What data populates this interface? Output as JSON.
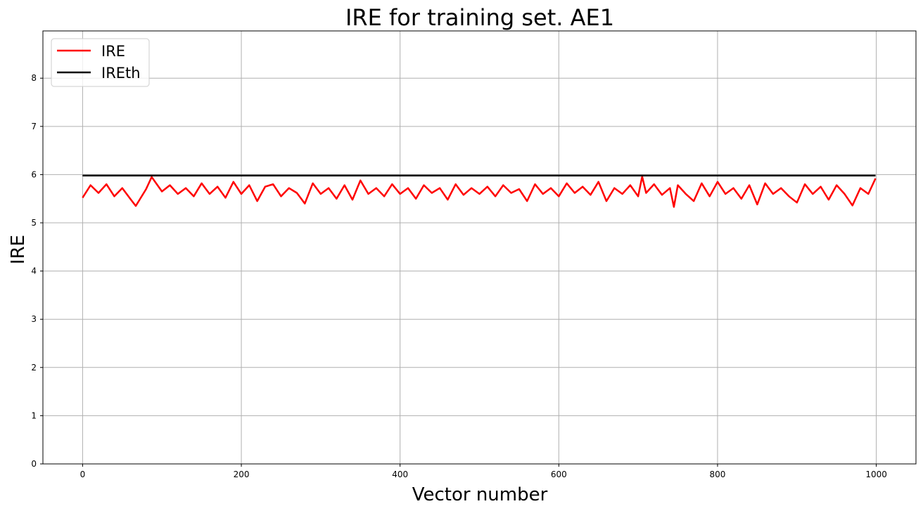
{
  "chart_data": {
    "type": "line",
    "title": "IRE for training set. AE1",
    "xlabel": "Vector number",
    "ylabel": "IRE",
    "xlim": [
      -50,
      1050
    ],
    "ylim": [
      0,
      8.98
    ],
    "xticks": [
      0,
      200,
      400,
      600,
      800,
      1000
    ],
    "yticks": [
      0,
      1,
      2,
      3,
      4,
      5,
      6,
      7,
      8
    ],
    "grid": true,
    "legend_position": "top-left",
    "series": [
      {
        "name": "IRE",
        "color": "#ff0000",
        "x": [
          0,
          10,
          20,
          30,
          40,
          50,
          60,
          67,
          80,
          87,
          100,
          110,
          120,
          130,
          140,
          150,
          160,
          170,
          180,
          190,
          200,
          210,
          220,
          230,
          240,
          250,
          260,
          270,
          280,
          290,
          300,
          310,
          320,
          330,
          340,
          350,
          360,
          370,
          380,
          390,
          400,
          410,
          420,
          430,
          440,
          450,
          460,
          470,
          480,
          490,
          500,
          510,
          520,
          530,
          540,
          550,
          560,
          570,
          580,
          590,
          600,
          610,
          620,
          630,
          640,
          650,
          660,
          670,
          680,
          690,
          700,
          705,
          710,
          720,
          730,
          740,
          745,
          750,
          760,
          770,
          780,
          790,
          800,
          810,
          820,
          830,
          840,
          850,
          860,
          870,
          880,
          890,
          900,
          910,
          920,
          930,
          940,
          950,
          960,
          970,
          980,
          990,
          999
        ],
        "y": [
          5.52,
          5.78,
          5.62,
          5.8,
          5.55,
          5.72,
          5.5,
          5.35,
          5.7,
          5.95,
          5.65,
          5.78,
          5.6,
          5.72,
          5.55,
          5.82,
          5.6,
          5.75,
          5.52,
          5.85,
          5.6,
          5.78,
          5.45,
          5.75,
          5.8,
          5.55,
          5.72,
          5.62,
          5.4,
          5.82,
          5.6,
          5.72,
          5.5,
          5.78,
          5.48,
          5.88,
          5.6,
          5.72,
          5.55,
          5.8,
          5.6,
          5.72,
          5.5,
          5.78,
          5.62,
          5.72,
          5.48,
          5.8,
          5.58,
          5.72,
          5.6,
          5.75,
          5.55,
          5.78,
          5.62,
          5.7,
          5.45,
          5.8,
          5.6,
          5.72,
          5.55,
          5.82,
          5.62,
          5.75,
          5.58,
          5.85,
          5.45,
          5.72,
          5.6,
          5.78,
          5.55,
          5.96,
          5.62,
          5.8,
          5.58,
          5.72,
          5.33,
          5.78,
          5.6,
          5.45,
          5.82,
          5.55,
          5.85,
          5.6,
          5.72,
          5.5,
          5.78,
          5.38,
          5.82,
          5.6,
          5.72,
          5.55,
          5.42,
          5.8,
          5.6,
          5.75,
          5.48,
          5.78,
          5.6,
          5.36,
          5.72,
          5.6,
          5.92
        ]
      },
      {
        "name": "IREth",
        "color": "#000000",
        "x": [
          0,
          999
        ],
        "y": [
          5.98,
          5.98
        ]
      }
    ]
  }
}
